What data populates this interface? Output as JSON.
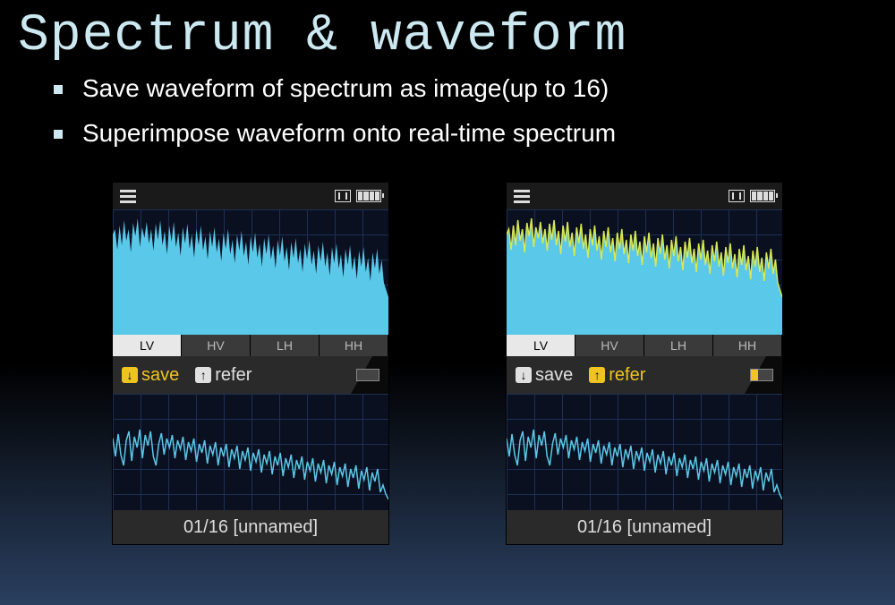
{
  "title": "Spectrum & waveform",
  "bullets": [
    "Save waveform of spectrum as image(up to 16)",
    "Superimpose waveform onto real-time spectrum"
  ],
  "tabs": [
    "LV",
    "HV",
    "LH",
    "HH"
  ],
  "active_tab": "LV",
  "colors": {
    "title": "#cce8f0",
    "spectrum_fill": "#5ac8e8",
    "overlay_line": "#d8e850",
    "ref_line": "#5ac8e8",
    "grid": "#1e2f55",
    "highlight": "#f0c420",
    "bg_gradient_top": "#000000",
    "bg_gradient_bottom": "#2a3f5f"
  },
  "left_device": {
    "save_label": "save",
    "refer_label": "refer",
    "save_active": true,
    "refer_active": false,
    "footer": "01/16 [unnamed]",
    "indicator": [
      "dim",
      "dim",
      "dim"
    ],
    "has_overlay": false
  },
  "right_device": {
    "save_label": "save",
    "refer_label": "refer",
    "save_active": false,
    "refer_active": true,
    "footer": "01/16 [unnamed]",
    "indicator": [
      "on",
      "dim",
      "dim"
    ],
    "has_overlay": true
  },
  "spectrum": {
    "type": "area",
    "xlim": [
      0,
      310
    ],
    "ylim": [
      0,
      140
    ],
    "values": [
      112,
      118,
      95,
      122,
      100,
      128,
      105,
      118,
      92,
      125,
      110,
      130,
      98,
      120,
      108,
      126,
      102,
      118,
      94,
      124,
      106,
      128,
      100,
      116,
      90,
      122,
      104,
      126,
      98,
      114,
      88,
      120,
      102,
      124,
      96,
      112,
      86,
      118,
      100,
      122,
      94,
      110,
      84,
      116,
      98,
      120,
      92,
      108,
      82,
      114,
      96,
      118,
      90,
      106,
      80,
      112,
      94,
      116,
      88,
      104,
      78,
      110,
      92,
      114,
      86,
      102,
      76,
      108,
      90,
      112,
      84,
      100,
      74,
      106,
      88,
      110,
      82,
      98,
      72,
      104,
      86,
      108,
      80,
      96,
      70,
      102,
      84,
      106,
      78,
      94,
      68,
      100,
      82,
      104,
      76,
      92,
      66,
      98,
      80,
      102,
      74,
      90,
      64,
      96,
      78,
      100,
      72,
      88,
      62,
      94,
      76,
      98,
      70,
      86,
      60,
      92,
      74,
      96,
      68,
      84,
      58,
      50,
      42
    ]
  },
  "reference": {
    "type": "line",
    "xlim": [
      0,
      310
    ],
    "ylim": [
      0,
      130
    ],
    "values": [
      80,
      60,
      85,
      62,
      50,
      78,
      88,
      55,
      82,
      70,
      90,
      58,
      84,
      72,
      88,
      60,
      50,
      74,
      86,
      62,
      80,
      70,
      84,
      58,
      78,
      68,
      82,
      56,
      76,
      66,
      80,
      54,
      74,
      64,
      78,
      52,
      72,
      62,
      76,
      50,
      70,
      60,
      74,
      48,
      68,
      58,
      72,
      46,
      66,
      56,
      70,
      44,
      64,
      54,
      68,
      42,
      62,
      52,
      66,
      40,
      60,
      50,
      64,
      38,
      58,
      48,
      62,
      36,
      56,
      46,
      60,
      34,
      54,
      44,
      58,
      32,
      52,
      42,
      56,
      30,
      50,
      40,
      54,
      28,
      48,
      38,
      52,
      26,
      46,
      36,
      50,
      24,
      44,
      34,
      48,
      22,
      42,
      32,
      46,
      20,
      28,
      18,
      12
    ]
  }
}
